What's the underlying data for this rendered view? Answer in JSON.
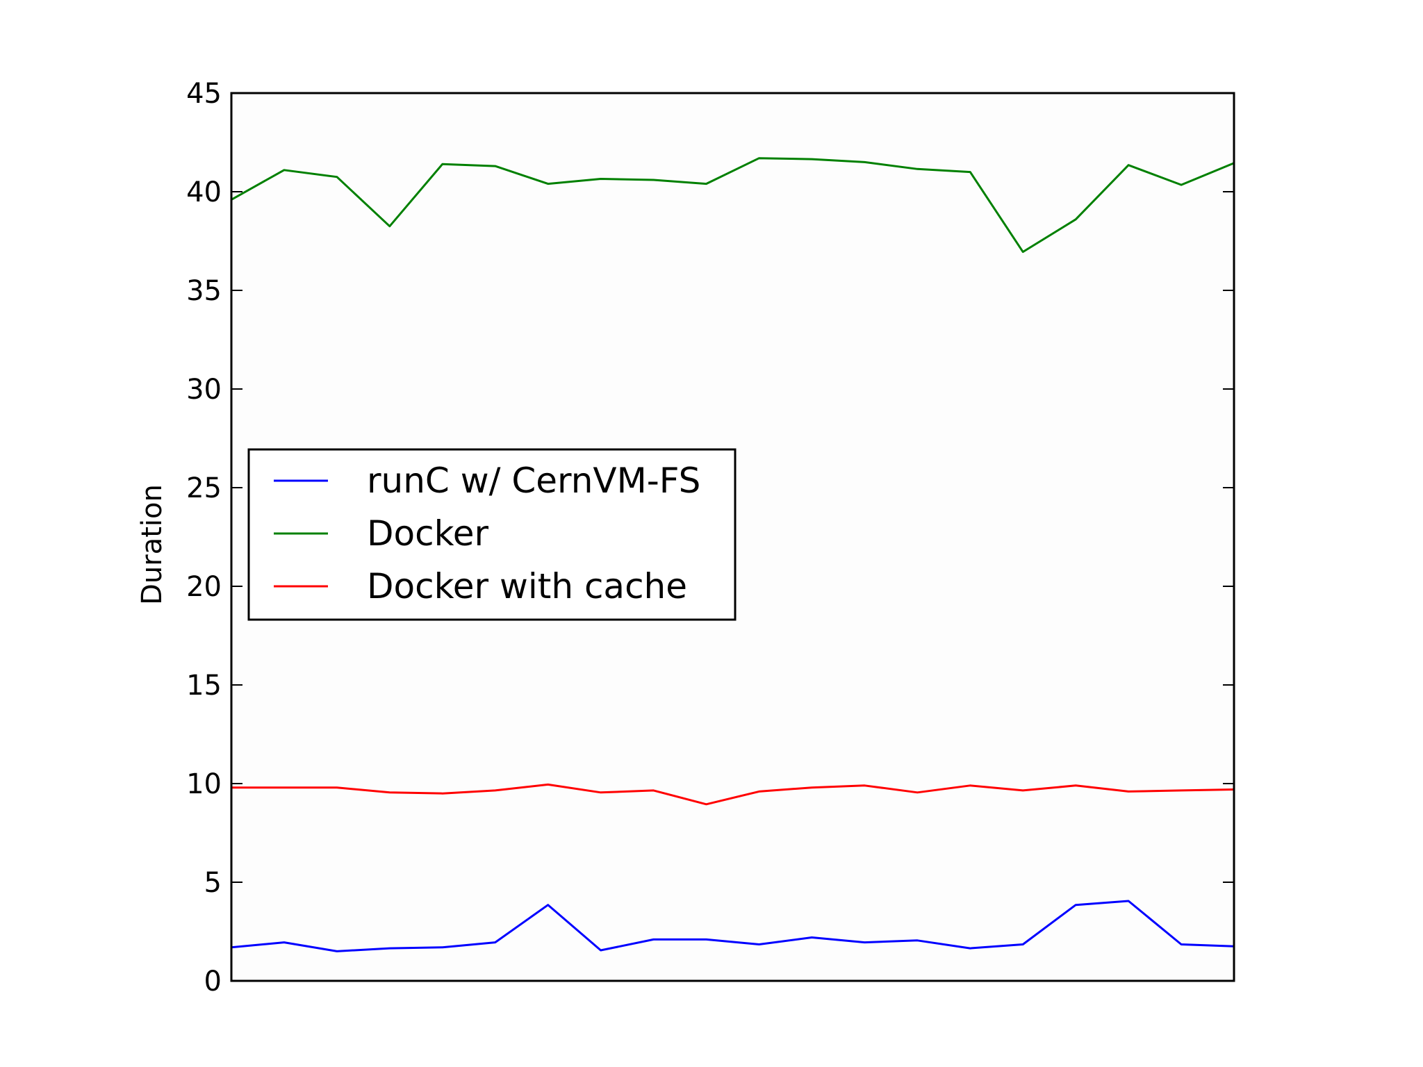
{
  "chart_data": {
    "type": "line",
    "title": "",
    "xlabel": "",
    "ylabel": "Duration",
    "ylim": [
      0,
      45
    ],
    "yticks": [
      0,
      5,
      10,
      15,
      20,
      25,
      30,
      35,
      40,
      45
    ],
    "x_tick_labels_shown": false,
    "grid": false,
    "legend_position": "center-left",
    "x": [
      0,
      1,
      2,
      3,
      4,
      5,
      6,
      7,
      8,
      9,
      10,
      11,
      12,
      13,
      14,
      15,
      16,
      17,
      18,
      19
    ],
    "series": [
      {
        "name": "runC w/ CernVM-FS",
        "color": "#0000ff",
        "values": [
          1.7,
          1.95,
          1.5,
          1.65,
          1.7,
          1.95,
          3.85,
          1.55,
          2.1,
          2.1,
          1.85,
          2.2,
          1.95,
          2.05,
          1.65,
          1.85,
          3.85,
          4.05,
          1.85,
          1.75
        ]
      },
      {
        "name": "Docker",
        "color": "#008000",
        "values": [
          39.6,
          41.1,
          40.75,
          38.25,
          41.4,
          41.3,
          40.4,
          40.65,
          40.6,
          40.4,
          41.7,
          41.65,
          41.5,
          41.15,
          41.0,
          36.95,
          38.6,
          41.35,
          40.35,
          41.45
        ]
      },
      {
        "name": "Docker with cache",
        "color": "#ff0000",
        "values": [
          9.8,
          9.8,
          9.8,
          9.55,
          9.5,
          9.65,
          9.95,
          9.55,
          9.65,
          8.95,
          9.6,
          9.8,
          9.9,
          9.55,
          9.9,
          9.65,
          9.9,
          9.6,
          9.65,
          9.7
        ]
      }
    ]
  }
}
